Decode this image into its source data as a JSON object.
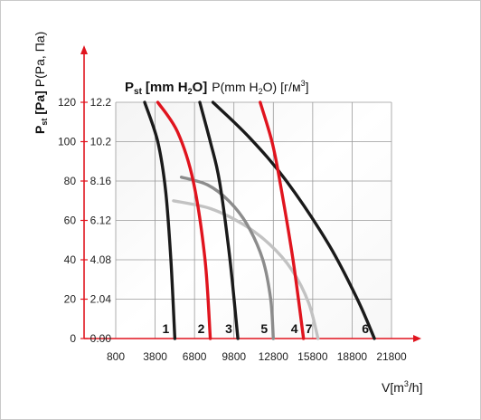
{
  "chart_data": {
    "type": "line",
    "title_html": "P",
    "title_parts": {
      "p": "P",
      "st": "st",
      "unit_bold": "[mm H",
      "two": "2",
      "unit_bold_end": "O]",
      "rest": "P(mm H",
      "rest2": "O) [г/м",
      "three": "3",
      "rest_end": "]"
    },
    "ylabel_parts": {
      "p": "P",
      "st": "st",
      "bold": "[Pa]",
      "rest": "P(Pa, Па)"
    },
    "xlabel_parts": {
      "v": "V[m",
      "three": "3",
      "end": "/h]"
    },
    "y_pa_ticks": [
      "0",
      "20",
      "40",
      "60",
      "80",
      "100",
      "120"
    ],
    "y_mm_ticks": [
      "0.00",
      "2.04",
      "4.08",
      "6.12",
      "8.16",
      "10.2",
      "12.2"
    ],
    "x_ticks": [
      "800",
      "3800",
      "6800",
      "9800",
      "12800",
      "15800",
      "18800",
      "21800"
    ],
    "xlim": [
      800,
      21800
    ],
    "ylim": [
      0,
      120
    ],
    "grid": true,
    "colors": {
      "black": "#1a1a1a",
      "red": "#e0141e",
      "gray": "#8c8c8c",
      "lightgray": "#c2c2c2",
      "axis_arrow": "#e0141e"
    },
    "series": [
      {
        "name": "1",
        "color": "black",
        "points": [
          [
            3000,
            120
          ],
          [
            4000,
            100
          ],
          [
            4600,
            75
          ],
          [
            5000,
            40
          ],
          [
            5300,
            0
          ]
        ]
      },
      {
        "name": "2",
        "color": "red",
        "points": [
          [
            4000,
            120
          ],
          [
            5500,
            105
          ],
          [
            6700,
            80
          ],
          [
            7600,
            40
          ],
          [
            8000,
            0
          ]
        ]
      },
      {
        "name": "3",
        "color": "black",
        "points": [
          [
            7200,
            120
          ],
          [
            8000,
            100
          ],
          [
            8700,
            80
          ],
          [
            9500,
            40
          ],
          [
            10100,
            0
          ]
        ]
      },
      {
        "name": "5",
        "color": "gray",
        "points": [
          [
            5800,
            82
          ],
          [
            7800,
            78
          ],
          [
            9400,
            70
          ],
          [
            10800,
            58
          ],
          [
            12000,
            40
          ],
          [
            12600,
            20
          ],
          [
            12800,
            0
          ]
        ]
      },
      {
        "name": "4",
        "color": "red",
        "points": [
          [
            11800,
            120
          ],
          [
            12700,
            100
          ],
          [
            13300,
            80
          ],
          [
            14300,
            40
          ],
          [
            15100,
            0
          ]
        ]
      },
      {
        "name": "7",
        "color": "lightgray",
        "points": [
          [
            5200,
            70
          ],
          [
            8000,
            66
          ],
          [
            10500,
            58
          ],
          [
            12500,
            48
          ],
          [
            14200,
            35
          ],
          [
            15500,
            18
          ],
          [
            16200,
            0
          ]
        ]
      },
      {
        "name": "6",
        "color": "black",
        "points": [
          [
            8200,
            120
          ],
          [
            11000,
            102
          ],
          [
            13800,
            80
          ],
          [
            17000,
            48
          ],
          [
            19200,
            20
          ],
          [
            20500,
            0
          ]
        ]
      }
    ]
  }
}
